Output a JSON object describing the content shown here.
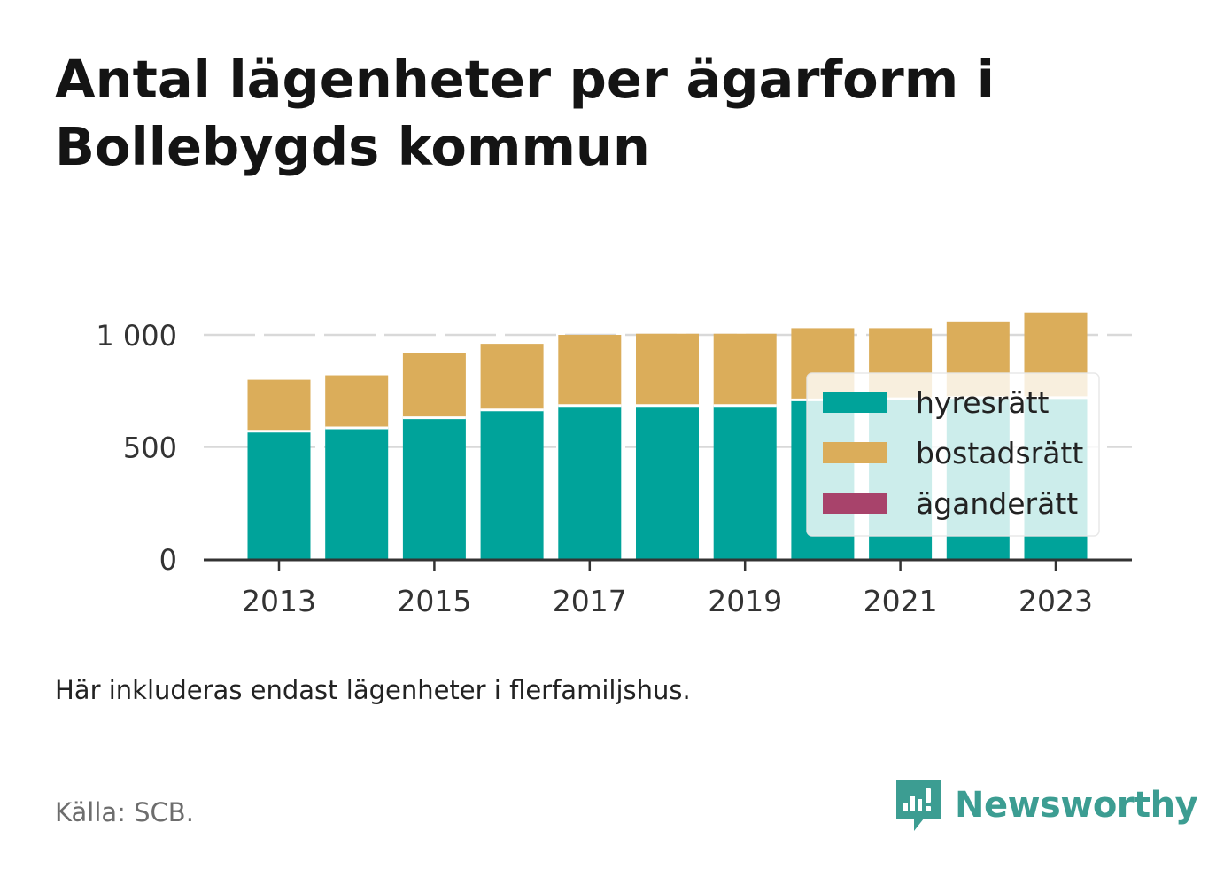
{
  "title": "Antal lägenheter per ägarform i Bollebygds kommun",
  "note": "Här inkluderas endast lägenheter i flerfamiljshus.",
  "source": "Källa: SCB.",
  "brand": {
    "name": "Newsworthy",
    "icon": "newsworthy-logo-icon",
    "color": "#3c9d92"
  },
  "chart_data": {
    "type": "bar",
    "stacked": true,
    "categories": [
      "2013",
      "2014",
      "2015",
      "2016",
      "2017",
      "2018",
      "2019",
      "2020",
      "2021",
      "2022",
      "2023"
    ],
    "series": [
      {
        "name": "hyresrätt",
        "color": "#00a39a",
        "values": [
          570,
          585,
          630,
          665,
          685,
          685,
          685,
          710,
          715,
          720,
          720
        ]
      },
      {
        "name": "bostadsrätt",
        "color": "#dbad5a",
        "values": [
          230,
          235,
          290,
          295,
          315,
          320,
          320,
          320,
          315,
          340,
          380
        ]
      },
      {
        "name": "äganderätt",
        "color": "#a8436b",
        "values": [
          0,
          0,
          0,
          0,
          0,
          0,
          0,
          0,
          0,
          0,
          0
        ]
      }
    ],
    "x_tick_labels": [
      "2013",
      "2015",
      "2017",
      "2019",
      "2021",
      "2023"
    ],
    "y_ticks": [
      0,
      500,
      1000
    ],
    "y_tick_labels": [
      "0",
      "500",
      "1 000"
    ],
    "ylim": [
      0,
      1100
    ],
    "grid": "horizontal dashed",
    "legend_position": "right inside plot"
  }
}
